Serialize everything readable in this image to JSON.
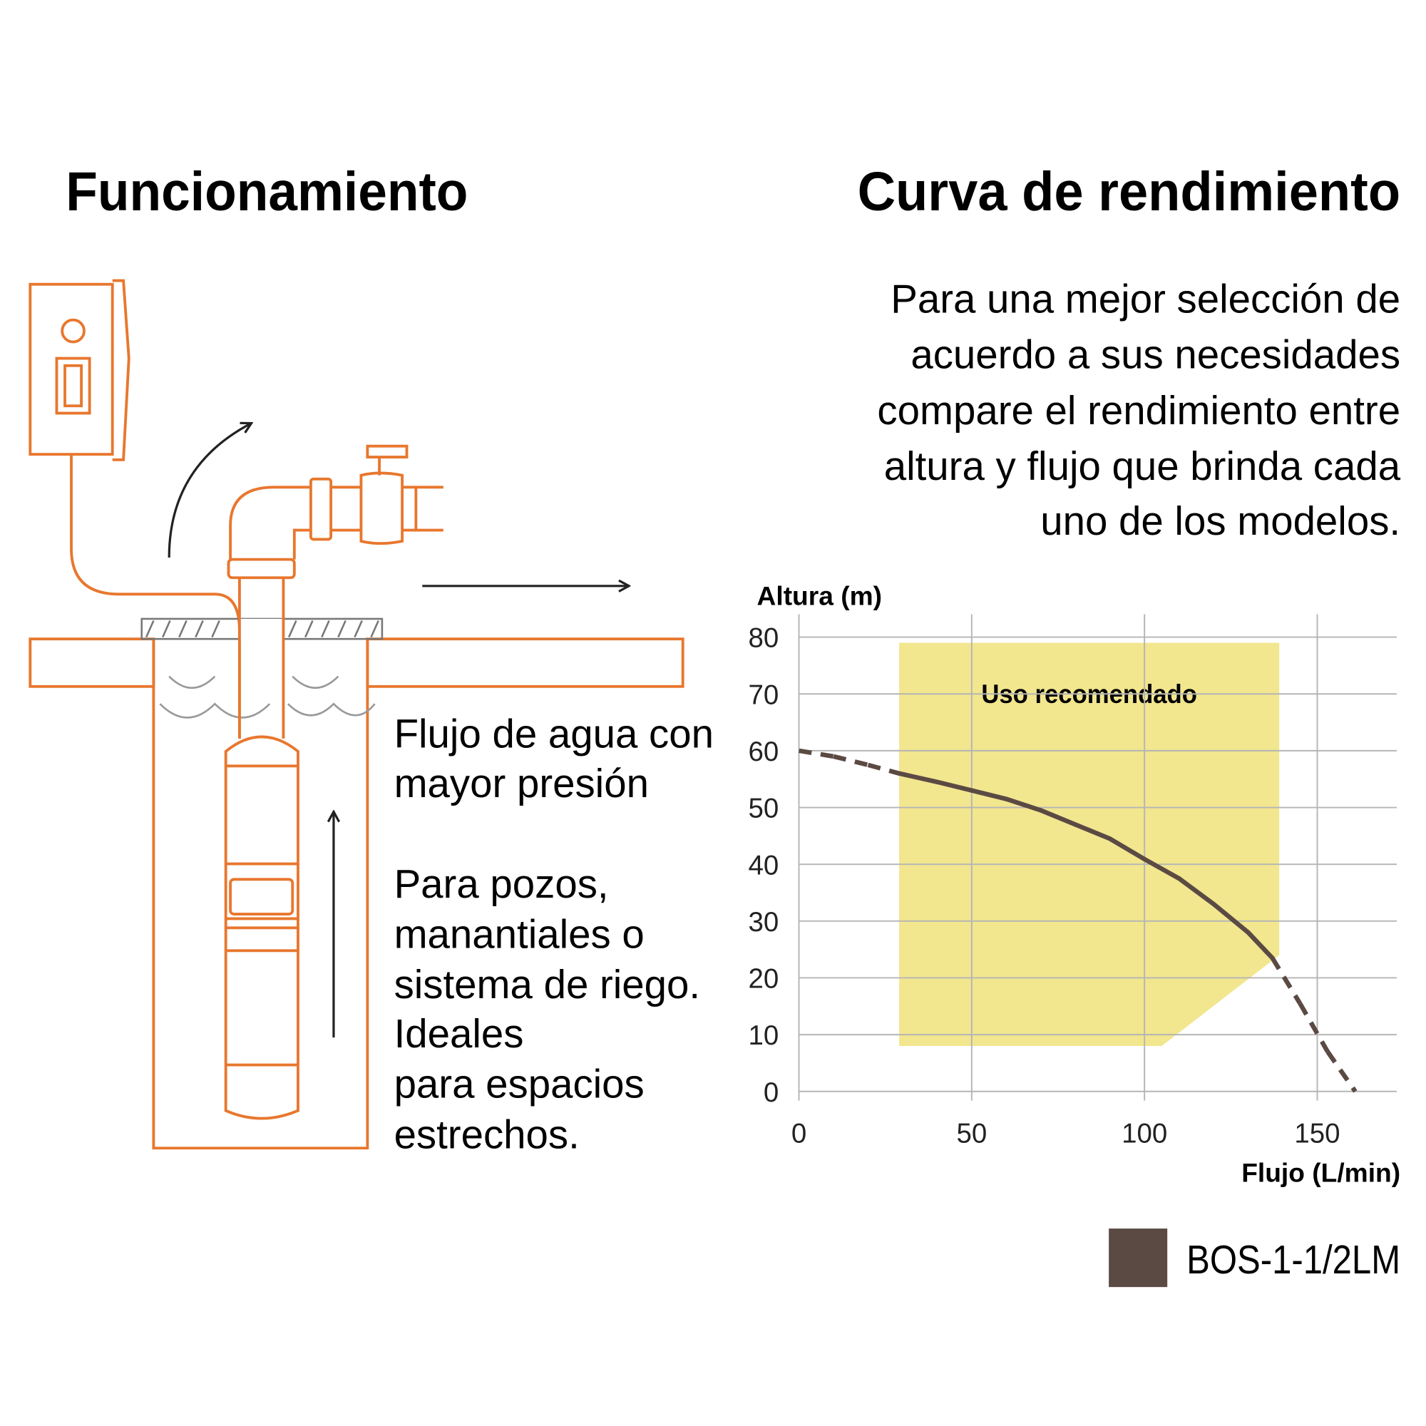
{
  "diagram": {
    "title": "Funcionamiento",
    "caption_1": [
      "Flujo de agua con",
      "mayor presión"
    ],
    "caption_2": [
      "Para pozos,",
      "manantiales o",
      "sistema de riego.",
      "Ideales",
      "para espacios",
      "estrechos."
    ]
  },
  "chart_data": {
    "type": "line",
    "title": "Curva de rendimiento",
    "subtitle": [
      "Para una mejor selección de",
      "acuerdo a sus necesidades",
      "compare el rendimiento entre",
      "altura y flujo que brinda cada",
      "uno de los modelos."
    ],
    "y_label": "Altura (m)",
    "x_label": "Flujo (L/min)",
    "xlim": [
      0,
      173
    ],
    "ylim": [
      0,
      80
    ],
    "xticks": [
      0,
      50,
      100,
      150
    ],
    "yticks": [
      0,
      10,
      20,
      30,
      40,
      50,
      60,
      70,
      80
    ],
    "grid": true,
    "recommended_area": {
      "label": "Uso recomendado",
      "color": "#f2e68f",
      "x": [
        29,
        139,
        139,
        105,
        29
      ],
      "y": [
        79,
        79,
        24,
        8,
        8
      ]
    },
    "series": [
      {
        "name": "BOS-1-1/2LM",
        "color": "#5b4a43",
        "x": [
          0,
          10,
          20,
          29,
          40,
          50,
          60,
          70,
          80,
          90,
          100,
          110,
          120,
          130,
          137,
          145,
          153,
          161
        ],
        "values": [
          60,
          59,
          57.5,
          56,
          54.5,
          53,
          51.5,
          49.5,
          47,
          44.5,
          40.9,
          37.5,
          33,
          28,
          23.5,
          15.5,
          7,
          0
        ]
      }
    ]
  }
}
